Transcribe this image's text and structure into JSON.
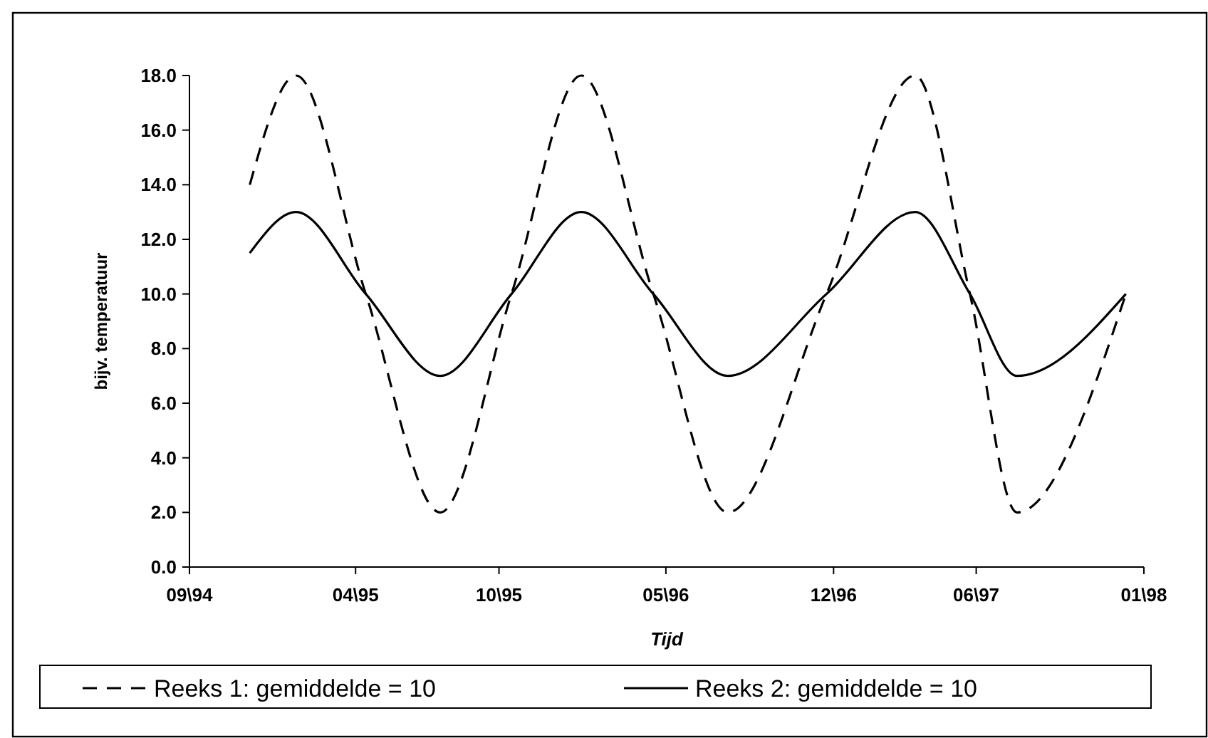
{
  "chart_data": {
    "type": "line",
    "xlabel": "Tijd",
    "ylabel": "bijv. temperatuur",
    "x": [
      "1994-11-17",
      "1995-01-15",
      "1995-04-14",
      "1995-07-18",
      "1995-10-17",
      "1996-01-14",
      "1996-04-15",
      "1996-07-19",
      "1996-11-22",
      "1997-03-15",
      "1997-05-24",
      "1997-07-23",
      "1997-12-09"
    ],
    "series": [
      {
        "name": "Reeks 1: gemiddelde = 10",
        "color": "#000000",
        "line_style": "dashed",
        "values": [
          14,
          18,
          10,
          2,
          10,
          18,
          10,
          2,
          10,
          18,
          10,
          2,
          10
        ]
      },
      {
        "name": "Reeks 2: gemiddelde = 10",
        "color": "#000000",
        "line_style": "solid",
        "values": [
          11.5,
          13,
          10,
          7,
          10,
          13,
          10,
          7,
          10,
          13,
          10,
          7,
          10
        ]
      }
    ],
    "xlim": [
      "1994-09-01",
      "1998-01-01"
    ],
    "xticks": [
      {
        "value": "1994-09-01",
        "label": "09\\94"
      },
      {
        "value": "1995-04-01",
        "label": "04\\95"
      },
      {
        "value": "1995-10-01",
        "label": "10\\95"
      },
      {
        "value": "1996-05-01",
        "label": "05\\96"
      },
      {
        "value": "1996-12-01",
        "label": "12\\96"
      },
      {
        "value": "1997-06-01",
        "label": "06\\97"
      },
      {
        "value": "1998-01-01",
        "label": "01\\98"
      }
    ],
    "ylim": [
      0,
      18
    ],
    "yticks": [
      {
        "value": 0,
        "label": "0.0"
      },
      {
        "value": 2,
        "label": "2.0"
      },
      {
        "value": 4,
        "label": "4.0"
      },
      {
        "value": 6,
        "label": "6.0"
      },
      {
        "value": 8,
        "label": "8.0"
      },
      {
        "value": 10,
        "label": "10.0"
      },
      {
        "value": 12,
        "label": "12.0"
      },
      {
        "value": 14,
        "label": "14.0"
      },
      {
        "value": 16,
        "label": "16.0"
      },
      {
        "value": 18,
        "label": "18.0"
      }
    ],
    "grid": false,
    "legend": "bottom",
    "marker": "none"
  }
}
